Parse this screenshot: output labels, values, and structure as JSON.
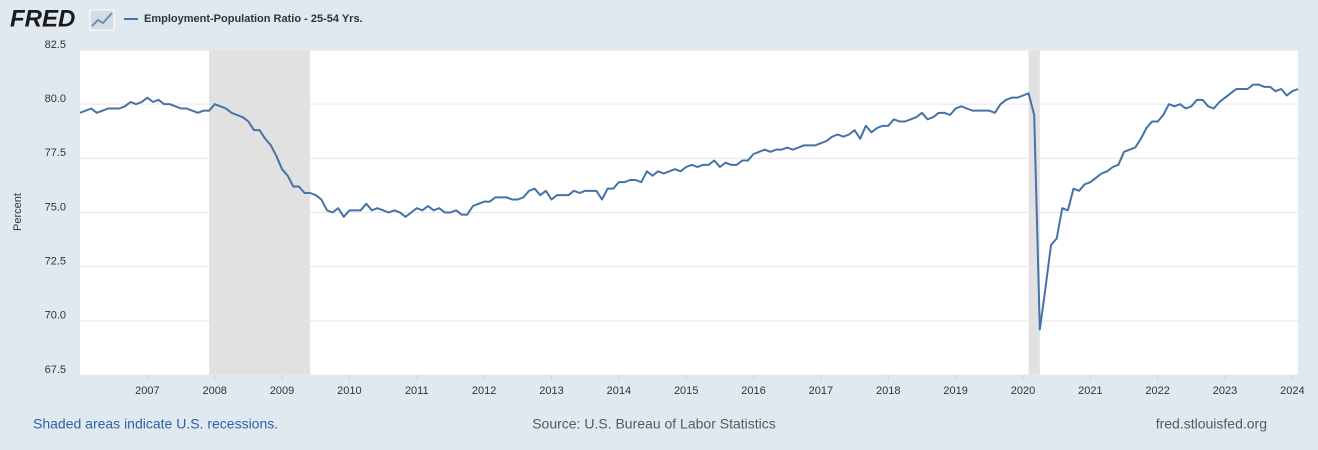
{
  "chart_data": {
    "type": "line",
    "logo": "FRED",
    "y_label": "Percent",
    "note": "Shaded areas indicate U.S. recessions.",
    "source": "Source: U.S. Bureau of Labor Statistics",
    "site": "fred.stlouisfed.org",
    "ylim": [
      67.5,
      82.5
    ],
    "yticks": [
      67.5,
      {
        "value": 70,
        "label": "70.0"
      },
      72.5,
      {
        "value": 75,
        "label": "75.0"
      },
      77.5,
      {
        "value": 80,
        "label": "80.0"
      },
      82.5
    ],
    "xlim": [
      "2006-01",
      "2024-02"
    ],
    "xticks": [
      "2007",
      "2008",
      "2009",
      "2010",
      "2011",
      "2012",
      "2013",
      "2014",
      "2015",
      "2016",
      "2017",
      "2018",
      "2019",
      "2020",
      "2021",
      "2022",
      "2023",
      "2024"
    ],
    "grid": true,
    "recession_color": "#e1e1e1",
    "recessions": [
      {
        "start": "2007-12",
        "end": "2009-06"
      },
      {
        "start": "2020-02",
        "end": "2020-04"
      }
    ],
    "x": [
      "2006-01",
      "2006-02",
      "2006-03",
      "2006-04",
      "2006-05",
      "2006-06",
      "2006-07",
      "2006-08",
      "2006-09",
      "2006-10",
      "2006-11",
      "2006-12",
      "2007-01",
      "2007-02",
      "2007-03",
      "2007-04",
      "2007-05",
      "2007-06",
      "2007-07",
      "2007-08",
      "2007-09",
      "2007-10",
      "2007-11",
      "2007-12",
      "2008-01",
      "2008-02",
      "2008-03",
      "2008-04",
      "2008-05",
      "2008-06",
      "2008-07",
      "2008-08",
      "2008-09",
      "2008-10",
      "2008-11",
      "2008-12",
      "2009-01",
      "2009-02",
      "2009-03",
      "2009-04",
      "2009-05",
      "2009-06",
      "2009-07",
      "2009-08",
      "2009-09",
      "2009-10",
      "2009-11",
      "2009-12",
      "2010-01",
      "2010-02",
      "2010-03",
      "2010-04",
      "2010-05",
      "2010-06",
      "2010-07",
      "2010-08",
      "2010-09",
      "2010-10",
      "2010-11",
      "2010-12",
      "2011-01",
      "2011-02",
      "2011-03",
      "2011-04",
      "2011-05",
      "2011-06",
      "2011-07",
      "2011-08",
      "2011-09",
      "2011-10",
      "2011-11",
      "2011-12",
      "2012-01",
      "2012-02",
      "2012-03",
      "2012-04",
      "2012-05",
      "2012-06",
      "2012-07",
      "2012-08",
      "2012-09",
      "2012-10",
      "2012-11",
      "2012-12",
      "2013-01",
      "2013-02",
      "2013-03",
      "2013-04",
      "2013-05",
      "2013-06",
      "2013-07",
      "2013-08",
      "2013-09",
      "2013-10",
      "2013-11",
      "2013-12",
      "2014-01",
      "2014-02",
      "2014-03",
      "2014-04",
      "2014-05",
      "2014-06",
      "2014-07",
      "2014-08",
      "2014-09",
      "2014-10",
      "2014-11",
      "2014-12",
      "2015-01",
      "2015-02",
      "2015-03",
      "2015-04",
      "2015-05",
      "2015-06",
      "2015-07",
      "2015-08",
      "2015-09",
      "2015-10",
      "2015-11",
      "2015-12",
      "2016-01",
      "2016-02",
      "2016-03",
      "2016-04",
      "2016-05",
      "2016-06",
      "2016-07",
      "2016-08",
      "2016-09",
      "2016-10",
      "2016-11",
      "2016-12",
      "2017-01",
      "2017-02",
      "2017-03",
      "2017-04",
      "2017-05",
      "2017-06",
      "2017-07",
      "2017-08",
      "2017-09",
      "2017-10",
      "2017-11",
      "2017-12",
      "2018-01",
      "2018-02",
      "2018-03",
      "2018-04",
      "2018-05",
      "2018-06",
      "2018-07",
      "2018-08",
      "2018-09",
      "2018-10",
      "2018-11",
      "2018-12",
      "2019-01",
      "2019-02",
      "2019-03",
      "2019-04",
      "2019-05",
      "2019-06",
      "2019-07",
      "2019-08",
      "2019-09",
      "2019-10",
      "2019-11",
      "2019-12",
      "2020-01",
      "2020-02",
      "2020-03",
      "2020-04",
      "2020-05",
      "2020-06",
      "2020-07",
      "2020-08",
      "2020-09",
      "2020-10",
      "2020-11",
      "2020-12",
      "2021-01",
      "2021-02",
      "2021-03",
      "2021-04",
      "2021-05",
      "2021-06",
      "2021-07",
      "2021-08",
      "2021-09",
      "2021-10",
      "2021-11",
      "2021-12",
      "2022-01",
      "2022-02",
      "2022-03",
      "2022-04",
      "2022-05",
      "2022-06",
      "2022-07",
      "2022-08",
      "2022-09",
      "2022-10",
      "2022-11",
      "2022-12",
      "2023-01",
      "2023-02",
      "2023-03",
      "2023-04",
      "2023-05",
      "2023-06",
      "2023-07",
      "2023-08",
      "2023-09",
      "2023-10",
      "2023-11",
      "2023-12",
      "2024-01",
      "2024-02"
    ],
    "series": [
      {
        "name": "Employment-Population Ratio - 25-54 Yrs.",
        "color": "#4572a7",
        "values": [
          79.6,
          79.7,
          79.8,
          79.6,
          79.7,
          79.8,
          79.8,
          79.8,
          79.9,
          80.1,
          80.0,
          80.1,
          80.3,
          80.1,
          80.2,
          80.0,
          80.0,
          79.9,
          79.8,
          79.8,
          79.7,
          79.6,
          79.7,
          79.7,
          80.0,
          79.9,
          79.8,
          79.6,
          79.5,
          79.4,
          79.2,
          78.8,
          78.8,
          78.4,
          78.1,
          77.6,
          77.0,
          76.7,
          76.2,
          76.2,
          75.9,
          75.9,
          75.8,
          75.6,
          75.1,
          75.0,
          75.2,
          74.8,
          75.1,
          75.1,
          75.1,
          75.4,
          75.1,
          75.2,
          75.1,
          75.0,
          75.1,
          75.0,
          74.8,
          75.0,
          75.2,
          75.1,
          75.3,
          75.1,
          75.2,
          75.0,
          75.0,
          75.1,
          74.9,
          74.9,
          75.3,
          75.4,
          75.5,
          75.5,
          75.7,
          75.7,
          75.7,
          75.6,
          75.6,
          75.7,
          76.0,
          76.1,
          75.8,
          76.0,
          75.6,
          75.8,
          75.8,
          75.8,
          76.0,
          75.9,
          76.0,
          76.0,
          76.0,
          75.6,
          76.1,
          76.1,
          76.4,
          76.4,
          76.5,
          76.5,
          76.4,
          76.9,
          76.7,
          76.9,
          76.8,
          76.9,
          77.0,
          76.9,
          77.1,
          77.2,
          77.1,
          77.2,
          77.2,
          77.4,
          77.1,
          77.3,
          77.2,
          77.2,
          77.4,
          77.4,
          77.7,
          77.8,
          77.9,
          77.8,
          77.9,
          77.9,
          78.0,
          77.9,
          78.0,
          78.1,
          78.1,
          78.1,
          78.2,
          78.3,
          78.5,
          78.6,
          78.5,
          78.6,
          78.8,
          78.4,
          79.0,
          78.7,
          78.9,
          79.0,
          79.0,
          79.3,
          79.2,
          79.2,
          79.3,
          79.4,
          79.6,
          79.3,
          79.4,
          79.6,
          79.6,
          79.5,
          79.8,
          79.9,
          79.8,
          79.7,
          79.7,
          79.7,
          79.7,
          79.6,
          80.0,
          80.2,
          80.3,
          80.3,
          80.4,
          80.5,
          79.5,
          69.6,
          71.5,
          73.5,
          73.8,
          75.2,
          75.1,
          76.1,
          76.0,
          76.3,
          76.4,
          76.6,
          76.8,
          76.9,
          77.1,
          77.2,
          77.8,
          77.9,
          78.0,
          78.4,
          78.9,
          79.2,
          79.2,
          79.5,
          80.0,
          79.9,
          80.0,
          79.8,
          79.9,
          80.2,
          80.2,
          79.9,
          79.8,
          80.1,
          80.3,
          80.5,
          80.7,
          80.7,
          80.7,
          80.9,
          80.9,
          80.8,
          80.8,
          80.6,
          80.7,
          80.4,
          80.6,
          80.7
        ]
      }
    ]
  }
}
